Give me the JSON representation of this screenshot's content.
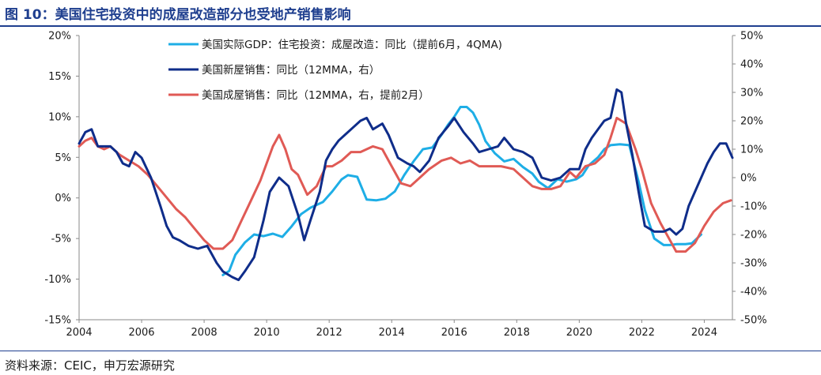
{
  "figure": {
    "title": "图 10：美国住宅投资中的成屋改造部分也受地产销售影响",
    "source": "资料来源：CEIC，申万宏源研究"
  },
  "chart_data": {
    "type": "line",
    "title": "图 10：美国住宅投资中的成屋改造部分也受地产销售影响",
    "xlabel": "",
    "ylabel_left": "",
    "ylabel_right": "",
    "xlim": [
      2004,
      2024.9
    ],
    "ylim_left": [
      -15,
      20
    ],
    "ylim_right": [
      -50,
      50
    ],
    "x_ticks": [
      "2004",
      "2006",
      "2008",
      "2010",
      "2012",
      "2014",
      "2016",
      "2018",
      "2020",
      "2022",
      "2024"
    ],
    "y_ticks_left": [
      "20%",
      "15%",
      "10%",
      "5%",
      "0%",
      "-5%",
      "-10%",
      "-15%"
    ],
    "y_ticks_right": [
      "50%",
      "40%",
      "30%",
      "20%",
      "10%",
      "0%",
      "-10%",
      "-20%",
      "-30%",
      "-40%",
      "-50%"
    ],
    "grid": false,
    "legend_position": "top-center",
    "series": [
      {
        "name": "美国实际GDP：住宅投资：成屋改造：同比（提前6月，4QMA)",
        "axis": "left",
        "color": "#1eaee6",
        "x": [
          2008.6,
          2008.8,
          2009.0,
          2009.3,
          2009.6,
          2009.9,
          2010.2,
          2010.5,
          2010.8,
          2011.1,
          2011.4,
          2011.8,
          2012.1,
          2012.4,
          2012.6,
          2012.9,
          2013.2,
          2013.5,
          2013.8,
          2014.1,
          2014.4,
          2014.7,
          2015.0,
          2015.3,
          2015.6,
          2015.8,
          2016.0,
          2016.2,
          2016.4,
          2016.6,
          2016.8,
          2017.0,
          2017.3,
          2017.6,
          2017.9,
          2018.2,
          2018.5,
          2018.7,
          2019.0,
          2019.3,
          2019.6,
          2019.9,
          2020.1,
          2020.3,
          2020.6,
          2020.8,
          2021.0,
          2021.3,
          2021.6,
          2021.9,
          2022.1,
          2022.4,
          2022.7,
          2022.9,
          2023.1,
          2023.4,
          2023.6,
          2023.9
        ],
        "y": [
          -9.5,
          -9.0,
          -7.0,
          -5.5,
          -4.5,
          -4.7,
          -4.4,
          -4.8,
          -3.5,
          -2.0,
          -1.2,
          -0.5,
          0.8,
          2.3,
          2.8,
          2.6,
          -0.2,
          -0.3,
          -0.1,
          0.8,
          2.8,
          4.5,
          6.0,
          6.2,
          7.8,
          9.0,
          10.0,
          11.2,
          11.2,
          10.5,
          9.0,
          7.0,
          5.5,
          4.5,
          4.8,
          3.8,
          3.0,
          2.0,
          1.2,
          2.3,
          2.0,
          2.3,
          2.8,
          4.0,
          5.0,
          6.0,
          6.5,
          6.6,
          6.5,
          2.0,
          -1.5,
          -5.0,
          -5.8,
          -5.8,
          -5.7,
          -5.7,
          -5.6,
          -4.5
        ]
      },
      {
        "name": "美国新屋销售：同比（12MMA，右）",
        "axis": "right",
        "color": "#0f2d8a",
        "x": [
          2004.0,
          2004.2,
          2004.4,
          2004.6,
          2004.8,
          2005.0,
          2005.2,
          2005.4,
          2005.6,
          2005.8,
          2006.0,
          2006.3,
          2006.6,
          2006.8,
          2007.0,
          2007.2,
          2007.5,
          2007.8,
          2008.1,
          2008.4,
          2008.6,
          2008.9,
          2009.1,
          2009.3,
          2009.6,
          2009.9,
          2010.1,
          2010.4,
          2010.7,
          2011.0,
          2011.2,
          2011.4,
          2011.7,
          2011.9,
          2012.1,
          2012.3,
          2012.5,
          2012.8,
          2013.0,
          2013.2,
          2013.4,
          2013.7,
          2013.9,
          2014.2,
          2014.5,
          2014.7,
          2014.9,
          2015.2,
          2015.5,
          2015.8,
          2016.0,
          2016.3,
          2016.6,
          2016.8,
          2017.1,
          2017.4,
          2017.6,
          2017.9,
          2018.2,
          2018.5,
          2018.8,
          2019.1,
          2019.4,
          2019.7,
          2020.0,
          2020.2,
          2020.4,
          2020.6,
          2020.8,
          2021.0,
          2021.2,
          2021.35,
          2021.5,
          2021.7,
          2021.9,
          2022.1,
          2022.4,
          2022.7,
          2022.9,
          2023.1,
          2023.3,
          2023.5,
          2023.7,
          2023.9,
          2024.1,
          2024.3,
          2024.5,
          2024.7,
          2024.9
        ],
        "y": [
          12,
          16,
          17,
          11,
          11,
          11,
          9,
          5,
          4,
          9,
          7,
          0,
          -10,
          -17,
          -21,
          -22,
          -24,
          -25,
          -24,
          -30,
          -33,
          -35,
          -36,
          -33,
          -28,
          -15,
          -5,
          0,
          -3,
          -13,
          -22,
          -15,
          -5,
          6,
          10,
          13,
          15,
          18,
          20,
          21,
          17,
          19,
          15,
          7,
          5,
          4,
          2,
          6,
          14,
          18,
          21,
          16,
          12,
          9,
          10,
          11,
          14,
          10,
          9,
          7,
          0,
          -1,
          0,
          3,
          3,
          10,
          14,
          17,
          20,
          21,
          31,
          30,
          19,
          8,
          -5,
          -17,
          -19,
          -19,
          -18,
          -20,
          -18,
          -10,
          -5,
          0,
          5,
          9,
          12,
          12,
          7
        ]
      },
      {
        "name": "美国成屋销售：同比（12MMA，右，提前2月）",
        "axis": "right",
        "color": "#e05a55",
        "x": [
          2004.0,
          2004.2,
          2004.4,
          2004.6,
          2004.8,
          2005.0,
          2005.3,
          2005.6,
          2005.9,
          2006.2,
          2006.5,
          2006.8,
          2007.1,
          2007.4,
          2007.7,
          2008.0,
          2008.3,
          2008.6,
          2008.9,
          2009.2,
          2009.5,
          2009.8,
          2010.0,
          2010.2,
          2010.4,
          2010.6,
          2010.8,
          2011.0,
          2011.3,
          2011.6,
          2011.9,
          2012.1,
          2012.4,
          2012.7,
          2013.0,
          2013.2,
          2013.4,
          2013.7,
          2014.0,
          2014.3,
          2014.6,
          2014.9,
          2015.2,
          2015.6,
          2015.9,
          2016.2,
          2016.5,
          2016.8,
          2017.1,
          2017.5,
          2017.9,
          2018.2,
          2018.5,
          2018.8,
          2019.1,
          2019.4,
          2019.7,
          2019.9,
          2020.2,
          2020.5,
          2020.8,
          2021.0,
          2021.2,
          2021.5,
          2021.8,
          2022.0,
          2022.3,
          2022.6,
          2022.9,
          2023.1,
          2023.4,
          2023.7,
          2024.0,
          2024.3,
          2024.6,
          2024.85
        ],
        "y": [
          11,
          13,
          14,
          11,
          10,
          11,
          8,
          6,
          4,
          1,
          -3,
          -7,
          -11,
          -14,
          -18,
          -22,
          -25,
          -25,
          -22,
          -15,
          -8,
          -1,
          5,
          11,
          15,
          10,
          3,
          1,
          -6,
          -3,
          4,
          4,
          6,
          9,
          9,
          10,
          11,
          10,
          4,
          -2,
          -3,
          0,
          3,
          6,
          7,
          5,
          6,
          4,
          4,
          4,
          3,
          0,
          -3,
          -4,
          -4,
          -3,
          2,
          0,
          4,
          5,
          8,
          14,
          21,
          19,
          10,
          3,
          -9,
          -16,
          -22,
          -26,
          -26,
          -23,
          -17,
          -12,
          -9,
          -8
        ]
      }
    ]
  }
}
